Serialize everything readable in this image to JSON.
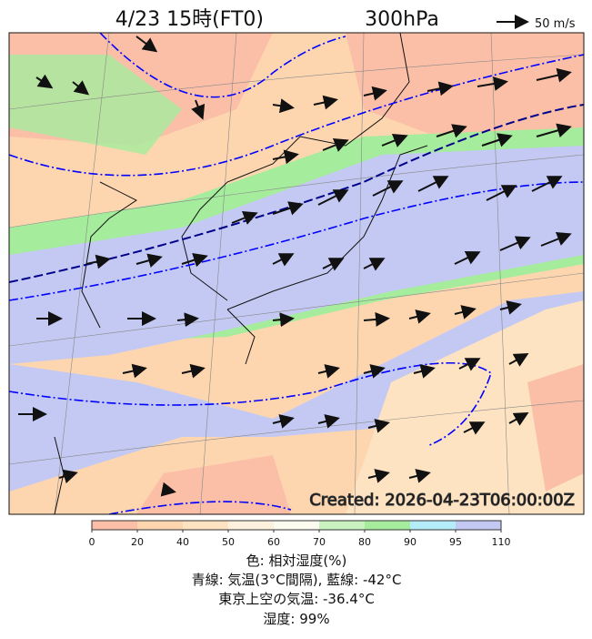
{
  "header": {
    "title_time": "4/23 15時(FT0)",
    "title_level": "300hPa",
    "scale_label": "50 m/s"
  },
  "map": {
    "stamp": "Created: 2026-04-23T06:00:00Z"
  },
  "colorbar": {
    "ticks": [
      "0",
      "20",
      "40",
      "50",
      "60",
      "70",
      "80",
      "90",
      "95",
      "110"
    ],
    "colors": [
      "#fbbfa8",
      "#fdd6b0",
      "#fde3c2",
      "#fdf0dc",
      "#fbfbf0",
      "#c8f2c0",
      "#a5ec9c",
      "#b4ecf8",
      "#c3c9f2"
    ]
  },
  "caption": [
    "色: 相対湿度(%)",
    "青線: 気温(3°C間隔), 藍線: -42°C",
    "東京上空の気温: -36.4°C",
    "湿度: 99%"
  ]
}
